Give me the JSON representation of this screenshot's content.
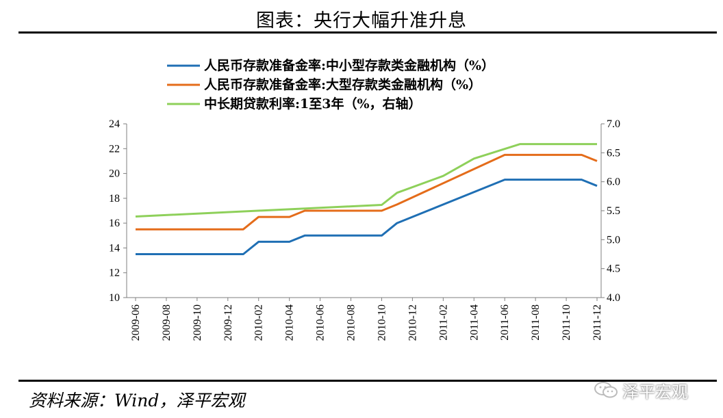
{
  "page_title": "图表：央行大幅升准升息",
  "source_note": "资料来源：Wind，泽平宏观",
  "watermark": {
    "text": "泽平宏观",
    "icon": "wechat-icon"
  },
  "chart_data": {
    "type": "line",
    "title": "",
    "legend_position": "top",
    "grid": false,
    "x_ticks": [
      "2009-06",
      "2009-08",
      "2009-10",
      "2009-12",
      "2010-02",
      "2010-04",
      "2010-06",
      "2010-08",
      "2010-10",
      "2010-12",
      "2011-02",
      "2011-04",
      "2011-06",
      "2011-08",
      "2011-10",
      "2011-12"
    ],
    "y_left": {
      "range": [
        10,
        24
      ],
      "ticks": [
        "10",
        "12",
        "14",
        "16",
        "18",
        "20",
        "22",
        "24"
      ]
    },
    "y_right": {
      "range": [
        4.0,
        7.0
      ],
      "ticks": [
        "4.0",
        "4.5",
        "5.0",
        "5.5",
        "6.0",
        "6.5",
        "7.0"
      ]
    },
    "series": [
      {
        "name": "人民币存款准备金率:中小型存款类金融机构（%）",
        "axis": "left",
        "color": "#1f6fb4",
        "points": [
          [
            "2009-06",
            13.5
          ],
          [
            "2009-12",
            13.5
          ],
          [
            "2010-01",
            13.5
          ],
          [
            "2010-02",
            14.5
          ],
          [
            "2010-04",
            14.5
          ],
          [
            "2010-05",
            15
          ],
          [
            "2010-10",
            15
          ],
          [
            "2010-11",
            16
          ],
          [
            "2011-06",
            19.5
          ],
          [
            "2011-11",
            19.5
          ],
          [
            "2011-12",
            19
          ]
        ]
      },
      {
        "name": "人民币存款准备金率:大型存款类金融机构（%）",
        "axis": "left",
        "color": "#e46c1a",
        "points": [
          [
            "2009-06",
            15.5
          ],
          [
            "2009-12",
            15.5
          ],
          [
            "2010-01",
            15.5
          ],
          [
            "2010-02",
            16.5
          ],
          [
            "2010-04",
            16.5
          ],
          [
            "2010-05",
            17
          ],
          [
            "2010-10",
            17
          ],
          [
            "2010-11",
            17.5
          ],
          [
            "2011-06",
            21.5
          ],
          [
            "2011-11",
            21.5
          ],
          [
            "2011-12",
            21
          ]
        ]
      },
      {
        "name": "中长期贷款利率:1至3年（%，右轴）",
        "axis": "right",
        "color": "#8ed05a",
        "points": [
          [
            "2009-06",
            5.4
          ],
          [
            "2010-10",
            5.6
          ],
          [
            "2010-11",
            5.81
          ],
          [
            "2011-02",
            6.1
          ],
          [
            "2011-04",
            6.4
          ],
          [
            "2011-07",
            6.65
          ],
          [
            "2011-12",
            6.65
          ]
        ]
      }
    ]
  }
}
